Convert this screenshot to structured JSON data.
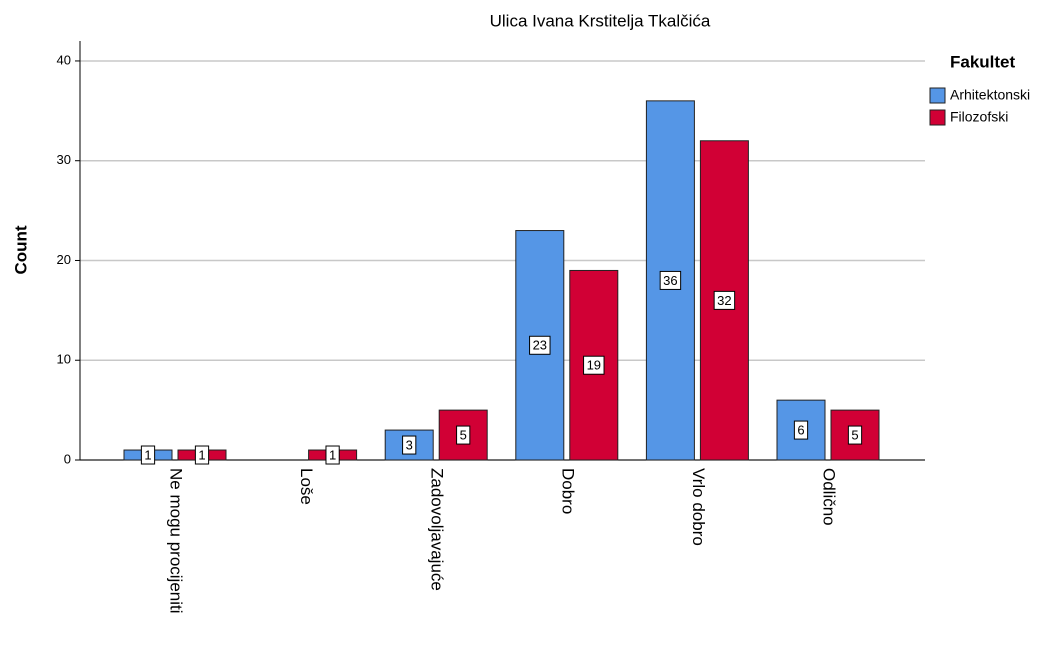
{
  "chart_data": {
    "type": "bar",
    "title": "Ulica Ivana Krstitelja Tkalčića",
    "y_label": "Count",
    "legend_title": "Fakultet",
    "legend": "right",
    "grid": true,
    "categories": [
      "Ne mogu procijeniti",
      "Loše",
      "Zadovoljavajuće",
      "Dobro",
      "Vrlo dobro",
      "Odlično"
    ],
    "series": [
      {
        "name": "Arhitektonski",
        "color": "#5596e6",
        "values": [
          1,
          null,
          3,
          23,
          36,
          6
        ]
      },
      {
        "name": "Filozofski",
        "color": "#d10035",
        "values": [
          1,
          1,
          5,
          19,
          32,
          5
        ]
      }
    ],
    "ylim": [
      0,
      42
    ],
    "yticks": [
      0,
      10,
      20,
      30,
      40
    ]
  }
}
